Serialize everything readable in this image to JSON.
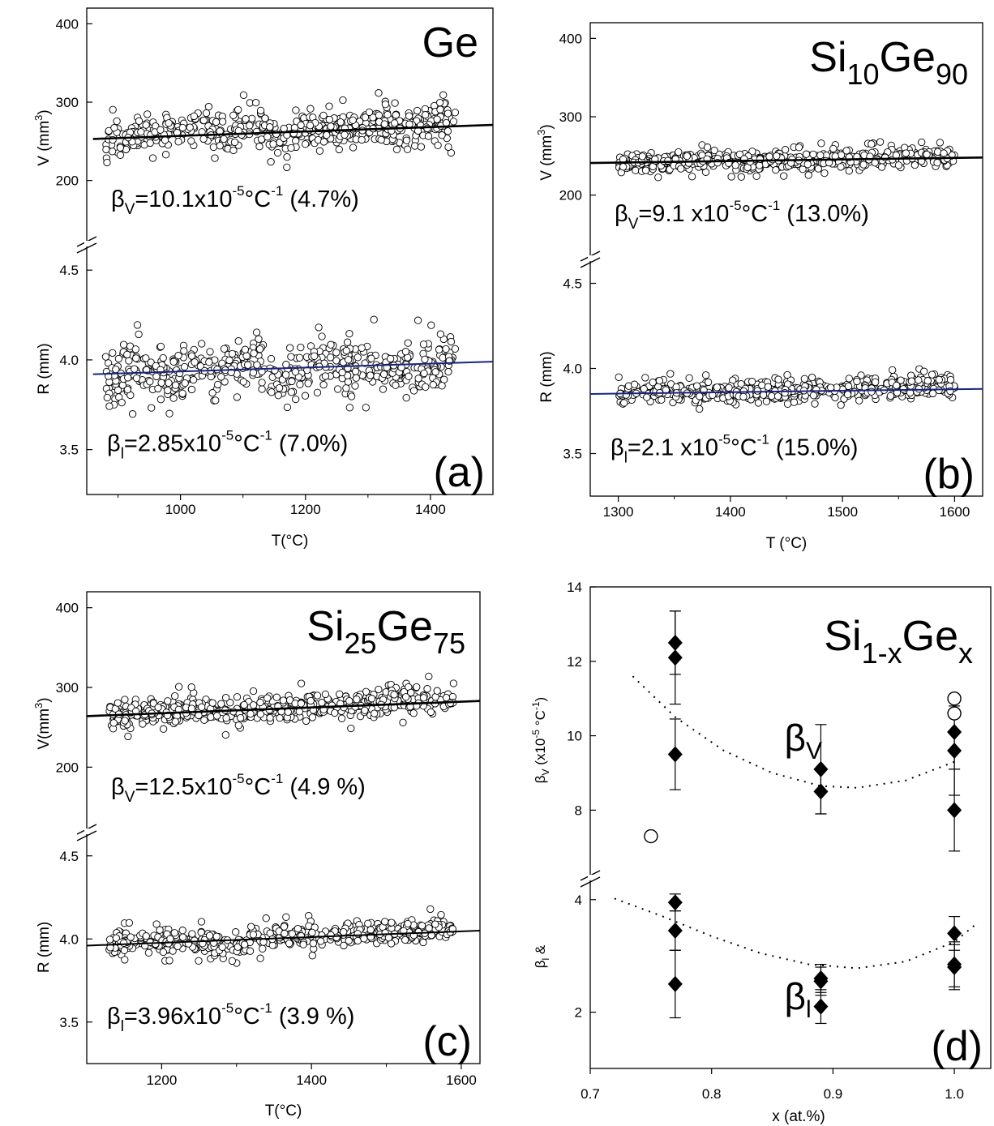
{
  "chart_data": [
    {
      "type": "scatter",
      "panel_label": "(a)",
      "title_main": "Ge",
      "title_sub1": "",
      "title_mid": "",
      "title_sub2": "",
      "xlabel": "T(°C)",
      "ylabel_top": "V (mm",
      "ylabel_top_sup": "3",
      "ylabel_top_end": ")",
      "ylabel_bottom": "R (mm)",
      "xlim": [
        850,
        1500
      ],
      "x_ticks": [
        1000,
        1200,
        1400
      ],
      "top": {
        "ylim": [
          120,
          420
        ],
        "ticks": [
          200,
          300,
          400
        ],
        "fit": [
          [
            860,
            253
          ],
          [
            1500,
            271
          ]
        ],
        "noise_amp": 40,
        "noise_sd": 12,
        "points": [
          [
            880,
            248
          ],
          [
            920,
            256
          ],
          [
            960,
            259
          ],
          [
            1000,
            262
          ],
          [
            1040,
            265
          ],
          [
            1080,
            259
          ],
          [
            1120,
            278
          ],
          [
            1160,
            255
          ],
          [
            1200,
            262
          ],
          [
            1240,
            266
          ],
          [
            1280,
            268
          ],
          [
            1320,
            272
          ],
          [
            1360,
            268
          ],
          [
            1400,
            272
          ],
          [
            1440,
            276
          ]
        ]
      },
      "bottom": {
        "ylim": [
          3.25,
          4.65
        ],
        "ticks": [
          3.5,
          4.0,
          4.5
        ],
        "fit": [
          [
            860,
            3.92
          ],
          [
            1500,
            3.99
          ]
        ],
        "fit_color": "#1a237e",
        "noise_amp": 0.25,
        "noise_sd": 0.07,
        "points": [
          [
            880,
            3.9
          ],
          [
            920,
            3.95
          ],
          [
            960,
            3.93
          ],
          [
            1000,
            3.92
          ],
          [
            1040,
            3.97
          ],
          [
            1080,
            3.93
          ],
          [
            1120,
            4.0
          ],
          [
            1160,
            3.85
          ],
          [
            1200,
            3.97
          ],
          [
            1240,
            3.98
          ],
          [
            1280,
            3.96
          ],
          [
            1320,
            3.98
          ],
          [
            1360,
            3.96
          ],
          [
            1400,
            3.98
          ],
          [
            1440,
            4.0
          ]
        ]
      },
      "annotations": {
        "top": {
          "sym": "β",
          "sub": "V",
          "pre": "=10.1x10",
          "sup": "-5",
          "post": "°C",
          "sup2": "-1",
          "tail": " (4.7%)"
        },
        "bottom": {
          "sym": "β",
          "sub": "l",
          "pre": "=2.85x10",
          "sup": "-5",
          "post": "°C",
          "sup2": "-1",
          "tail": " (7.0%)"
        }
      }
    },
    {
      "type": "scatter",
      "panel_label": "(b)",
      "title_main": "Si",
      "title_sub1": "10",
      "title_mid": "Ge",
      "title_sub2": "90",
      "xlabel": "T (°C)",
      "ylabel_top": "V (mm",
      "ylabel_top_sup": "3",
      "ylabel_top_end": ")",
      "ylabel_bottom": "R (mm)",
      "xlim": [
        1275,
        1625
      ],
      "x_ticks": [
        1300,
        1400,
        1500,
        1600
      ],
      "top": {
        "ylim": [
          120,
          420
        ],
        "ticks": [
          200,
          300,
          400
        ],
        "fit": [
          [
            1275,
            241
          ],
          [
            1625,
            248
          ]
        ],
        "noise_amp": 20,
        "noise_sd": 6,
        "points": [
          [
            1300,
            240
          ],
          [
            1340,
            243
          ],
          [
            1380,
            244
          ],
          [
            1420,
            243
          ],
          [
            1460,
            245
          ],
          [
            1500,
            247
          ],
          [
            1540,
            248
          ],
          [
            1580,
            250
          ],
          [
            1600,
            248
          ]
        ]
      },
      "bottom": {
        "ylim": [
          3.25,
          4.65
        ],
        "ticks": [
          3.5,
          4.0,
          4.5
        ],
        "fit": [
          [
            1275,
            3.85
          ],
          [
            1625,
            3.88
          ]
        ],
        "fit_color": "#1a237e",
        "noise_amp": 0.1,
        "noise_sd": 0.03,
        "points": [
          [
            1300,
            3.86
          ],
          [
            1340,
            3.87
          ],
          [
            1380,
            3.86
          ],
          [
            1420,
            3.87
          ],
          [
            1460,
            3.87
          ],
          [
            1500,
            3.88
          ],
          [
            1540,
            3.89
          ],
          [
            1580,
            3.9
          ],
          [
            1600,
            3.89
          ]
        ]
      },
      "annotations": {
        "top": {
          "sym": "β",
          "sub": "V",
          "pre": "=9.1 x10",
          "sup": "-5",
          "post": "°C",
          "sup2": "-1",
          "tail": " (13.0%)"
        },
        "bottom": {
          "sym": "β",
          "sub": "l",
          "pre": "=2.1 x10",
          "sup": "-5",
          "post": "°C",
          "sup2": "-1",
          "tail": " (15.0%)"
        }
      }
    },
    {
      "type": "scatter",
      "panel_label": "(c)",
      "title_main": "Si",
      "title_sub1": "25",
      "title_mid": "Ge",
      "title_sub2": "75",
      "xlabel": "T(°C)",
      "ylabel_top": "V(mm",
      "ylabel_top_sup": "3",
      "ylabel_top_end": ")",
      "ylabel_bottom": "R (mm)",
      "xlim": [
        1100,
        1625
      ],
      "x_ticks": [
        1200,
        1400,
        1600
      ],
      "top": {
        "ylim": [
          120,
          420
        ],
        "ticks": [
          200,
          300,
          400
        ],
        "fit": [
          [
            1100,
            264
          ],
          [
            1625,
            283
          ]
        ],
        "noise_amp": 30,
        "noise_sd": 8,
        "points": [
          [
            1130,
            265
          ],
          [
            1170,
            268
          ],
          [
            1210,
            270
          ],
          [
            1240,
            272
          ],
          [
            1280,
            270
          ],
          [
            1320,
            274
          ],
          [
            1360,
            273
          ],
          [
            1400,
            276
          ],
          [
            1440,
            278
          ],
          [
            1480,
            280
          ],
          [
            1520,
            283
          ],
          [
            1560,
            285
          ],
          [
            1590,
            288
          ]
        ]
      },
      "bottom": {
        "ylim": [
          3.25,
          4.65
        ],
        "ticks": [
          3.5,
          4.0,
          4.5
        ],
        "fit": [
          [
            1100,
            3.96
          ],
          [
            1625,
            4.05
          ]
        ],
        "fit_color": "#000000",
        "noise_amp": 0.12,
        "noise_sd": 0.035,
        "points": [
          [
            1130,
            3.97
          ],
          [
            1170,
            3.98
          ],
          [
            1210,
            3.99
          ],
          [
            1240,
            4.0
          ],
          [
            1280,
            3.95
          ],
          [
            1320,
            4.0
          ],
          [
            1360,
            4.01
          ],
          [
            1400,
            4.02
          ],
          [
            1440,
            4.02
          ],
          [
            1480,
            4.04
          ],
          [
            1520,
            4.05
          ],
          [
            1560,
            4.06
          ],
          [
            1590,
            4.08
          ]
        ]
      },
      "annotations": {
        "top": {
          "sym": "β",
          "sub": "V",
          "pre": "=12.5x10",
          "sup": "-5",
          "post": "°C",
          "sup2": "-1",
          "tail": " (4.9 %)"
        },
        "bottom": {
          "sym": "β",
          "sub": "l",
          "pre": "=3.96x10",
          "sup": "-5",
          "post": "°C",
          "sup2": "-1",
          "tail": " (3.9 %)"
        }
      }
    },
    {
      "type": "scatter",
      "panel_label": "(d)",
      "title_main": "Si",
      "title_sub1": "1-x",
      "title_mid": "Ge",
      "title_sub2": "x",
      "xlabel": "x (at.%)",
      "ylabel_top": "β",
      "ylabel_top_sub": "V",
      "ylabel_top_rest": " (x10",
      "ylabel_top_sup": "-5",
      "ylabel_top_end": " °C",
      "ylabel_top_sup2": "-1",
      "ylabel_top_close": ")",
      "ylabel_bottom": "β",
      "ylabel_bottom_sub": "l",
      "ylabel_bottom_rest": " &",
      "xlim": [
        0.7,
        1.03
      ],
      "x_ticks": [
        0.7,
        0.8,
        0.9,
        1.0
      ],
      "x_tick_labels": [
        "0.7",
        "0.8",
        "0.9",
        "1.0"
      ],
      "top": {
        "ylim": [
          6.2,
          14
        ],
        "ticks": [
          8,
          10,
          12,
          14
        ],
        "filled": [
          {
            "x": 0.77,
            "y": 12.5,
            "err": 0.85
          },
          {
            "x": 0.77,
            "y": 12.1,
            "err": 1.25
          },
          {
            "x": 0.77,
            "y": 9.5,
            "err": 0.95
          },
          {
            "x": 0.89,
            "y": 9.1,
            "err": 1.2
          },
          {
            "x": 0.89,
            "y": 8.5,
            "err": 0.6
          },
          {
            "x": 1.0,
            "y": 10.1,
            "err": 1.0
          },
          {
            "x": 1.0,
            "y": 9.6,
            "err": 1.2
          },
          {
            "x": 1.0,
            "y": 8.0,
            "err": 1.1
          }
        ],
        "open": [
          {
            "x": 0.75,
            "y": 7.3
          },
          {
            "x": 1.0,
            "y": 11.0
          },
          {
            "x": 1.0,
            "y": 10.6
          }
        ],
        "trend": [
          [
            0.735,
            11.6
          ],
          [
            0.77,
            10.5
          ],
          [
            0.81,
            9.6
          ],
          [
            0.85,
            9.0
          ],
          [
            0.89,
            8.65
          ],
          [
            0.92,
            8.6
          ],
          [
            0.96,
            8.8
          ],
          [
            1.0,
            9.3
          ]
        ]
      },
      "bottom": {
        "ylim": [
          1.0,
          4.4
        ],
        "ticks": [
          2,
          4
        ],
        "filled": [
          {
            "x": 0.77,
            "y": 3.95,
            "err": 0.15
          },
          {
            "x": 0.77,
            "y": 3.45,
            "err": 0.35
          },
          {
            "x": 0.77,
            "y": 2.5,
            "err": 0.6
          },
          {
            "x": 0.89,
            "y": 2.6,
            "err": 0.25
          },
          {
            "x": 0.89,
            "y": 2.55,
            "err": 0.25
          },
          {
            "x": 0.89,
            "y": 2.1,
            "err": 0.3
          },
          {
            "x": 1.0,
            "y": 3.4,
            "err": 0.3
          },
          {
            "x": 1.0,
            "y": 2.85,
            "err": 0.4
          },
          {
            "x": 1.0,
            "y": 2.8,
            "err": 0.4
          }
        ],
        "trend": [
          [
            0.72,
            4.02
          ],
          [
            0.76,
            3.7
          ],
          [
            0.8,
            3.35
          ],
          [
            0.84,
            3.05
          ],
          [
            0.88,
            2.85
          ],
          [
            0.92,
            2.78
          ],
          [
            0.96,
            2.9
          ],
          [
            1.0,
            3.25
          ],
          [
            1.02,
            3.6
          ]
        ]
      },
      "annotations": {
        "top": {
          "sym": "β",
          "sub": "V"
        },
        "bottom": {
          "sym": "β",
          "sub": "l"
        }
      }
    }
  ]
}
